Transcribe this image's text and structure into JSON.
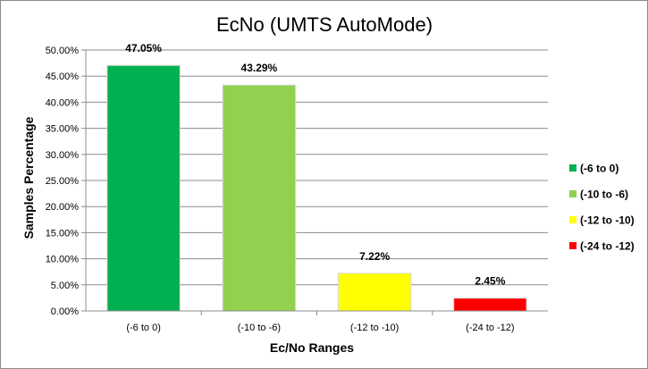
{
  "chart_data": {
    "type": "bar",
    "title": "EcNo (UMTS AutoMode)",
    "xlabel": "Ec/No Ranges",
    "ylabel": "Samples Percentage",
    "categories": [
      "(-6 to 0)",
      "(-10 to -6)",
      "(-12 to -10)",
      "(-24 to -12)"
    ],
    "values": [
      47.05,
      43.29,
      7.22,
      2.45
    ],
    "data_labels": [
      "47.05%",
      "43.29%",
      "7.22%",
      "2.45%"
    ],
    "colors": [
      "#00b050",
      "#92d050",
      "#ffff00",
      "#ff0000"
    ],
    "ylim": [
      0,
      50
    ],
    "yticks": [
      "0.00%",
      "5.00%",
      "10.00%",
      "15.00%",
      "20.00%",
      "25.00%",
      "30.00%",
      "35.00%",
      "40.00%",
      "45.00%",
      "50.00%"
    ],
    "grid": true,
    "legend_position": "right"
  }
}
